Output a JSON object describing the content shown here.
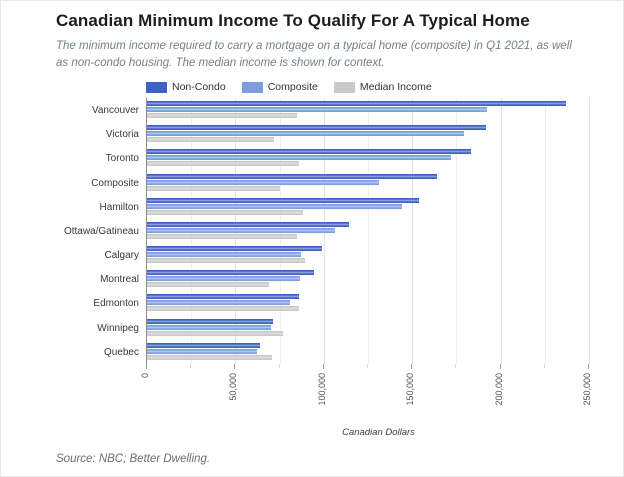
{
  "title": "Canadian Minimum Income To Qualify For A Typical Home",
  "subtitle": "The minimum income required to carry a mortgage on a typical home (composite) in Q1 2021, as well as non-condo housing. The median income is shown for context.",
  "source": "Source: NBC; Better Dwelling.",
  "legend": {
    "items": [
      {
        "label": "Non-Condo",
        "color": "#3e61c4"
      },
      {
        "label": "Composite",
        "color": "#7d9ede"
      },
      {
        "label": "Median Income",
        "color": "#c9c9cb"
      }
    ]
  },
  "chart_data": {
    "type": "bar",
    "orientation": "horizontal",
    "title": "Canadian Minimum Income To Qualify For A Typical Home",
    "xlabel": "Canadian Dollars",
    "legend_position": "top",
    "grid": true,
    "grid_interval": 25000,
    "xlim": [
      0,
      263000
    ],
    "categories": [
      "Vancouver",
      "Victoria",
      "Toronto",
      "Composite",
      "Hamilton",
      "Ottawa/Gatineau",
      "Calgary",
      "Montreal",
      "Edmonton",
      "Winnipeg",
      "Quebec"
    ],
    "series": [
      {
        "name": "Non-Condo",
        "color": "#3e61c4",
        "values": [
          237000,
          191500,
          183500,
          164000,
          154000,
          114500,
          99000,
          94500,
          86000,
          71500,
          64000
        ]
      },
      {
        "name": "Composite",
        "color": "#7d9ede",
        "values": [
          192500,
          179500,
          172000,
          131000,
          144000,
          106500,
          87000,
          86500,
          81000,
          70000,
          62000
        ]
      },
      {
        "name": "Median Income",
        "color": "#c9c9cb",
        "values": [
          85000,
          72000,
          86000,
          75000,
          88500,
          85000,
          89500,
          69000,
          86000,
          77000,
          70500
        ]
      }
    ],
    "x_ticks": [
      {
        "value": 0,
        "label": "0"
      },
      {
        "value": 50000,
        "label": "50,000"
      },
      {
        "value": 100000,
        "label": "100,000"
      },
      {
        "value": 150000,
        "label": "150,000"
      },
      {
        "value": 200000,
        "label": "200,000"
      },
      {
        "value": 250000,
        "label": "250,000"
      }
    ]
  }
}
